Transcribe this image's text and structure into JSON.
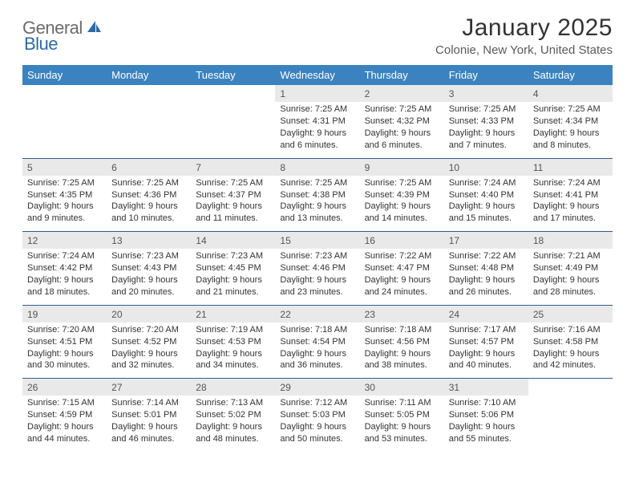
{
  "logo": {
    "text1": "General",
    "text2": "Blue"
  },
  "title": "January 2025",
  "location": "Colonie, New York, United States",
  "colors": {
    "header_bg": "#3b83c0",
    "header_text": "#ffffff",
    "daynum_bg": "#e9e9e9",
    "row_divider": "#2d5f8f",
    "body_text": "#333333",
    "logo_gray": "#6b6b6b",
    "logo_blue": "#2d6aa8"
  },
  "day_headers": [
    "Sunday",
    "Monday",
    "Tuesday",
    "Wednesday",
    "Thursday",
    "Friday",
    "Saturday"
  ],
  "weeks": [
    [
      null,
      null,
      null,
      {
        "n": "1",
        "sr": "Sunrise: 7:25 AM",
        "ss": "Sunset: 4:31 PM",
        "d1": "Daylight: 9 hours",
        "d2": "and 6 minutes."
      },
      {
        "n": "2",
        "sr": "Sunrise: 7:25 AM",
        "ss": "Sunset: 4:32 PM",
        "d1": "Daylight: 9 hours",
        "d2": "and 6 minutes."
      },
      {
        "n": "3",
        "sr": "Sunrise: 7:25 AM",
        "ss": "Sunset: 4:33 PM",
        "d1": "Daylight: 9 hours",
        "d2": "and 7 minutes."
      },
      {
        "n": "4",
        "sr": "Sunrise: 7:25 AM",
        "ss": "Sunset: 4:34 PM",
        "d1": "Daylight: 9 hours",
        "d2": "and 8 minutes."
      }
    ],
    [
      {
        "n": "5",
        "sr": "Sunrise: 7:25 AM",
        "ss": "Sunset: 4:35 PM",
        "d1": "Daylight: 9 hours",
        "d2": "and 9 minutes."
      },
      {
        "n": "6",
        "sr": "Sunrise: 7:25 AM",
        "ss": "Sunset: 4:36 PM",
        "d1": "Daylight: 9 hours",
        "d2": "and 10 minutes."
      },
      {
        "n": "7",
        "sr": "Sunrise: 7:25 AM",
        "ss": "Sunset: 4:37 PM",
        "d1": "Daylight: 9 hours",
        "d2": "and 11 minutes."
      },
      {
        "n": "8",
        "sr": "Sunrise: 7:25 AM",
        "ss": "Sunset: 4:38 PM",
        "d1": "Daylight: 9 hours",
        "d2": "and 13 minutes."
      },
      {
        "n": "9",
        "sr": "Sunrise: 7:25 AM",
        "ss": "Sunset: 4:39 PM",
        "d1": "Daylight: 9 hours",
        "d2": "and 14 minutes."
      },
      {
        "n": "10",
        "sr": "Sunrise: 7:24 AM",
        "ss": "Sunset: 4:40 PM",
        "d1": "Daylight: 9 hours",
        "d2": "and 15 minutes."
      },
      {
        "n": "11",
        "sr": "Sunrise: 7:24 AM",
        "ss": "Sunset: 4:41 PM",
        "d1": "Daylight: 9 hours",
        "d2": "and 17 minutes."
      }
    ],
    [
      {
        "n": "12",
        "sr": "Sunrise: 7:24 AM",
        "ss": "Sunset: 4:42 PM",
        "d1": "Daylight: 9 hours",
        "d2": "and 18 minutes."
      },
      {
        "n": "13",
        "sr": "Sunrise: 7:23 AM",
        "ss": "Sunset: 4:43 PM",
        "d1": "Daylight: 9 hours",
        "d2": "and 20 minutes."
      },
      {
        "n": "14",
        "sr": "Sunrise: 7:23 AM",
        "ss": "Sunset: 4:45 PM",
        "d1": "Daylight: 9 hours",
        "d2": "and 21 minutes."
      },
      {
        "n": "15",
        "sr": "Sunrise: 7:23 AM",
        "ss": "Sunset: 4:46 PM",
        "d1": "Daylight: 9 hours",
        "d2": "and 23 minutes."
      },
      {
        "n": "16",
        "sr": "Sunrise: 7:22 AM",
        "ss": "Sunset: 4:47 PM",
        "d1": "Daylight: 9 hours",
        "d2": "and 24 minutes."
      },
      {
        "n": "17",
        "sr": "Sunrise: 7:22 AM",
        "ss": "Sunset: 4:48 PM",
        "d1": "Daylight: 9 hours",
        "d2": "and 26 minutes."
      },
      {
        "n": "18",
        "sr": "Sunrise: 7:21 AM",
        "ss": "Sunset: 4:49 PM",
        "d1": "Daylight: 9 hours",
        "d2": "and 28 minutes."
      }
    ],
    [
      {
        "n": "19",
        "sr": "Sunrise: 7:20 AM",
        "ss": "Sunset: 4:51 PM",
        "d1": "Daylight: 9 hours",
        "d2": "and 30 minutes."
      },
      {
        "n": "20",
        "sr": "Sunrise: 7:20 AM",
        "ss": "Sunset: 4:52 PM",
        "d1": "Daylight: 9 hours",
        "d2": "and 32 minutes."
      },
      {
        "n": "21",
        "sr": "Sunrise: 7:19 AM",
        "ss": "Sunset: 4:53 PM",
        "d1": "Daylight: 9 hours",
        "d2": "and 34 minutes."
      },
      {
        "n": "22",
        "sr": "Sunrise: 7:18 AM",
        "ss": "Sunset: 4:54 PM",
        "d1": "Daylight: 9 hours",
        "d2": "and 36 minutes."
      },
      {
        "n": "23",
        "sr": "Sunrise: 7:18 AM",
        "ss": "Sunset: 4:56 PM",
        "d1": "Daylight: 9 hours",
        "d2": "and 38 minutes."
      },
      {
        "n": "24",
        "sr": "Sunrise: 7:17 AM",
        "ss": "Sunset: 4:57 PM",
        "d1": "Daylight: 9 hours",
        "d2": "and 40 minutes."
      },
      {
        "n": "25",
        "sr": "Sunrise: 7:16 AM",
        "ss": "Sunset: 4:58 PM",
        "d1": "Daylight: 9 hours",
        "d2": "and 42 minutes."
      }
    ],
    [
      {
        "n": "26",
        "sr": "Sunrise: 7:15 AM",
        "ss": "Sunset: 4:59 PM",
        "d1": "Daylight: 9 hours",
        "d2": "and 44 minutes."
      },
      {
        "n": "27",
        "sr": "Sunrise: 7:14 AM",
        "ss": "Sunset: 5:01 PM",
        "d1": "Daylight: 9 hours",
        "d2": "and 46 minutes."
      },
      {
        "n": "28",
        "sr": "Sunrise: 7:13 AM",
        "ss": "Sunset: 5:02 PM",
        "d1": "Daylight: 9 hours",
        "d2": "and 48 minutes."
      },
      {
        "n": "29",
        "sr": "Sunrise: 7:12 AM",
        "ss": "Sunset: 5:03 PM",
        "d1": "Daylight: 9 hours",
        "d2": "and 50 minutes."
      },
      {
        "n": "30",
        "sr": "Sunrise: 7:11 AM",
        "ss": "Sunset: 5:05 PM",
        "d1": "Daylight: 9 hours",
        "d2": "and 53 minutes."
      },
      {
        "n": "31",
        "sr": "Sunrise: 7:10 AM",
        "ss": "Sunset: 5:06 PM",
        "d1": "Daylight: 9 hours",
        "d2": "and 55 minutes."
      },
      null
    ]
  ]
}
